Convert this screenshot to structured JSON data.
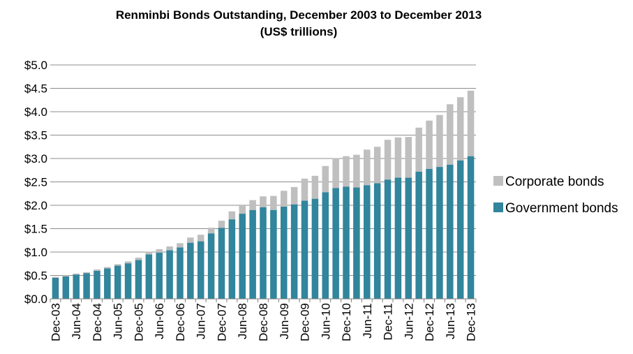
{
  "chart_data": {
    "type": "bar",
    "stacked": true,
    "title": "Renminbi Bonds Outstanding, December 2003 to December 2013",
    "subtitle": "(US$ trillions)",
    "xlabel": "",
    "ylabel": "",
    "ylim": [
      0,
      5
    ],
    "yticks": [
      "$0.0",
      "$0.5",
      "$1.0",
      "$1.5",
      "$2.0",
      "$2.5",
      "$3.0",
      "$3.5",
      "$4.0",
      "$4.5",
      "$5.0"
    ],
    "ytick_values": [
      0,
      0.5,
      1,
      1.5,
      2,
      2.5,
      3,
      3.5,
      4,
      4.5,
      5
    ],
    "grid": true,
    "legend_position": "right",
    "categories": [
      "Dec-03",
      "",
      "Jun-04",
      "",
      "Dec-04",
      "",
      "Jun-05",
      "",
      "Dec-05",
      "",
      "Jun-06",
      "",
      "Dec-06",
      "",
      "Jun-07",
      "",
      "Dec-07",
      "",
      "Jun-08",
      "",
      "Dec-08",
      "",
      "Jun-09",
      "",
      "Dec-09",
      "",
      "Jun-10",
      "",
      "Dec-10",
      "",
      "Jun-11",
      "",
      "Dec-11",
      "",
      "Jun-12",
      "",
      "Dec-12",
      "",
      "Jun-13",
      "",
      "Dec-13"
    ],
    "series": [
      {
        "name": "Government bonds",
        "color": "#31859c",
        "values": [
          0.45,
          0.48,
          0.52,
          0.55,
          0.6,
          0.65,
          0.71,
          0.76,
          0.83,
          0.95,
          0.99,
          1.04,
          1.1,
          1.2,
          1.23,
          1.4,
          1.52,
          1.7,
          1.82,
          1.9,
          1.96,
          1.9,
          1.97,
          2.02,
          2.1,
          2.14,
          2.28,
          2.37,
          2.4,
          2.38,
          2.43,
          2.47,
          2.55,
          2.59,
          2.59,
          2.72,
          2.78,
          2.82,
          2.87,
          2.96,
          3.05
        ]
      },
      {
        "name": "Corporate bonds",
        "color": "#bfbfbf",
        "values": [
          0.02,
          0.02,
          0.02,
          0.02,
          0.03,
          0.03,
          0.03,
          0.04,
          0.05,
          0.06,
          0.07,
          0.08,
          0.09,
          0.11,
          0.14,
          0.12,
          0.15,
          0.17,
          0.18,
          0.21,
          0.23,
          0.3,
          0.34,
          0.37,
          0.47,
          0.49,
          0.56,
          0.64,
          0.65,
          0.7,
          0.76,
          0.78,
          0.85,
          0.86,
          0.87,
          0.94,
          1.03,
          1.11,
          1.29,
          1.35,
          1.4
        ]
      }
    ]
  }
}
